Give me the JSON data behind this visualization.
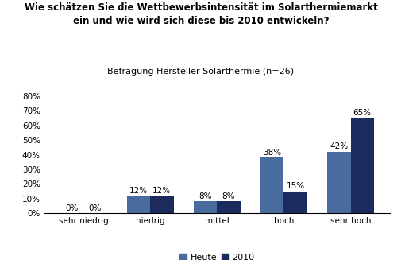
{
  "title_line1": "Wie schätzen Sie die Wettbewerbsintensität im Solarthermiemarkt",
  "title_line2": "ein und wie wird sich diese bis 2010 entwickeln?",
  "subtitle": "Befragung Hersteller Solarthermie (n=26)",
  "categories": [
    "sehr niedrig",
    "niedrig",
    "mittel",
    "hoch",
    "sehr hoch"
  ],
  "heute_values": [
    0,
    12,
    8,
    38,
    42
  ],
  "values_2010": [
    0,
    12,
    8,
    15,
    65
  ],
  "heute_color": "#4A6B9E",
  "color_2010": "#1C2B5E",
  "ylim": [
    0,
    80
  ],
  "yticks": [
    0,
    10,
    20,
    30,
    40,
    50,
    60,
    70,
    80
  ],
  "legend_heute": "Heute",
  "legend_2010": "2010",
  "bar_width": 0.35,
  "title_fontsize": 8.5,
  "subtitle_fontsize": 8.0,
  "tick_fontsize": 7.5,
  "label_fontsize": 7.5,
  "legend_fontsize": 8.0,
  "background_color": "#ffffff"
}
